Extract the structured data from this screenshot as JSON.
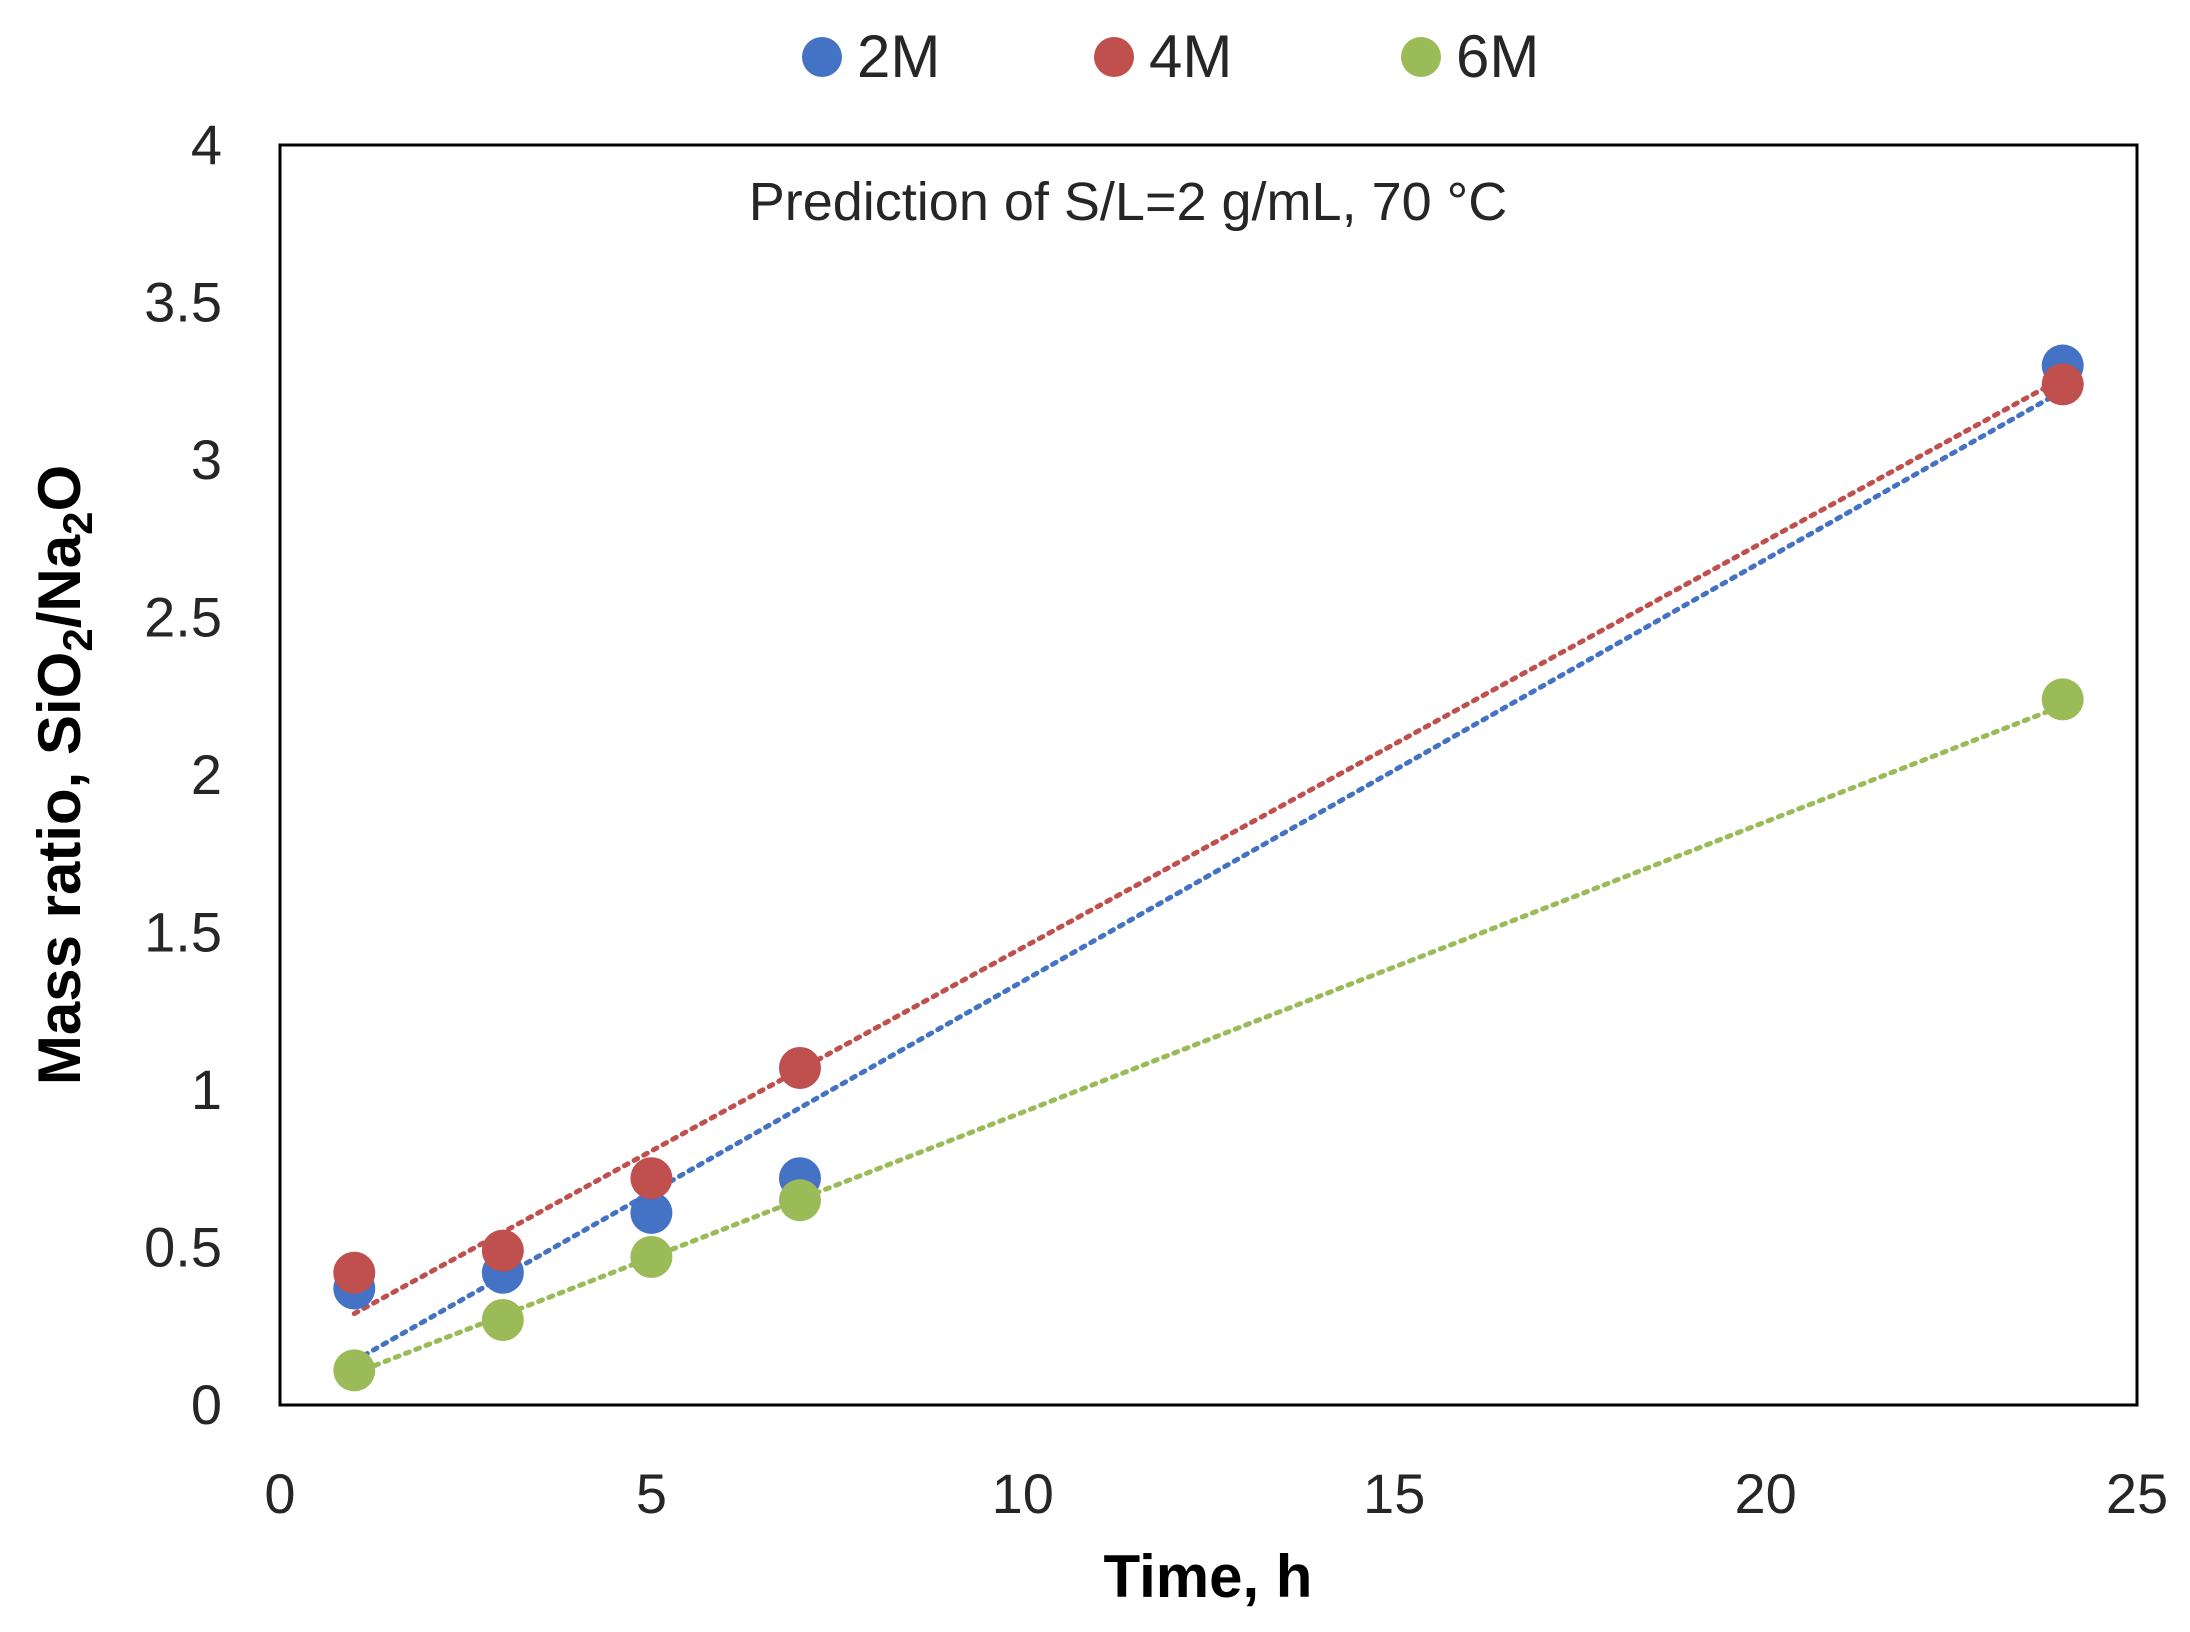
{
  "chart_data": {
    "type": "scatter",
    "annotation": "Prediction of  S/L=2 g/mL, 70 °C",
    "xlabel": "Time, h",
    "ylabel": {
      "prefix": "Mass ratio, SiO",
      "sub1": "2",
      "mid": "/Na",
      "sub2": "2",
      "suffix": "O"
    },
    "xlim": [
      0,
      25
    ],
    "ylim": [
      0,
      4
    ],
    "xticks": [
      0,
      5,
      10,
      15,
      20,
      25
    ],
    "yticks": [
      0,
      0.5,
      1,
      1.5,
      2,
      2.5,
      3,
      3.5,
      4
    ],
    "legend_position": "top",
    "grid": false,
    "series": [
      {
        "name": "2M",
        "color": "#4472C4",
        "x": [
          1,
          3,
          5,
          7,
          24
        ],
        "y": [
          0.37,
          0.42,
          0.61,
          0.72,
          3.3
        ],
        "trendline": {
          "style": "dotted",
          "x": [
            1,
            24
          ],
          "y": [
            0.14,
            3.22
          ]
        }
      },
      {
        "name": "4M",
        "color": "#C0504D",
        "x": [
          1,
          3,
          5,
          7,
          24
        ],
        "y": [
          0.42,
          0.49,
          0.72,
          1.07,
          3.24
        ],
        "trendline": {
          "style": "dotted",
          "x": [
            1,
            24
          ],
          "y": [
            0.29,
            3.26
          ]
        }
      },
      {
        "name": "6M",
        "color": "#9BBB59",
        "x": [
          1,
          3,
          5,
          7,
          24
        ],
        "y": [
          0.11,
          0.27,
          0.47,
          0.65,
          2.24
        ],
        "trendline": {
          "style": "dotted",
          "x": [
            1,
            24
          ],
          "y": [
            0.1,
            2.22
          ]
        }
      }
    ]
  }
}
